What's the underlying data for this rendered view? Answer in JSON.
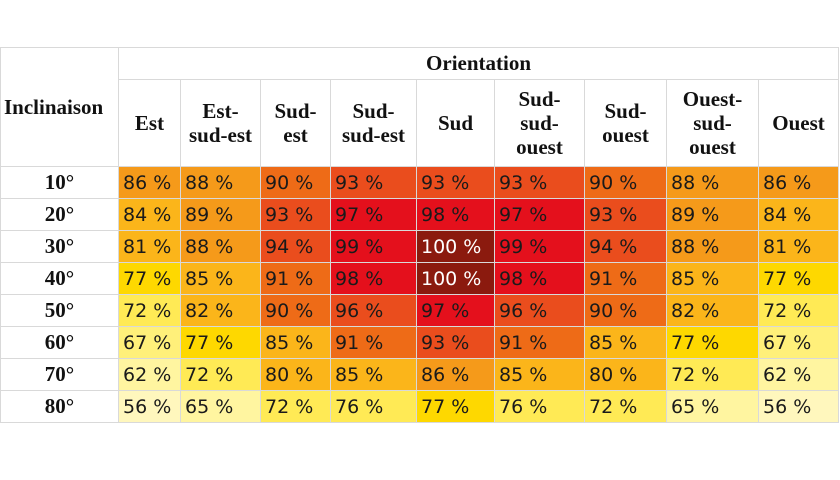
{
  "chart_data": {
    "type": "heatmap",
    "row_header": "Inclinaison",
    "column_group_header": "Orientation",
    "columns": [
      "Est",
      "Est-\nsud-est",
      "Sud-\nest",
      "Sud-\nsud-est",
      "Sud",
      "Sud-\nsud-\nouest",
      "Sud-\nouest",
      "Ouest-\nsud-\nouest",
      "Ouest"
    ],
    "rows": [
      "10°",
      "20°",
      "30°",
      "40°",
      "50°",
      "60°",
      "70°",
      "80°"
    ],
    "values": [
      [
        86,
        88,
        90,
        93,
        93,
        93,
        90,
        88,
        86
      ],
      [
        84,
        89,
        93,
        97,
        98,
        97,
        93,
        89,
        84
      ],
      [
        81,
        88,
        94,
        99,
        100,
        99,
        94,
        88,
        81
      ],
      [
        77,
        85,
        91,
        98,
        100,
        98,
        91,
        85,
        77
      ],
      [
        72,
        82,
        90,
        96,
        97,
        96,
        90,
        82,
        72
      ],
      [
        67,
        77,
        85,
        91,
        93,
        91,
        85,
        77,
        67
      ],
      [
        62,
        72,
        80,
        85,
        86,
        85,
        80,
        72,
        62
      ],
      [
        56,
        65,
        72,
        76,
        77,
        76,
        72,
        65,
        56
      ]
    ],
    "value_suffix": " %",
    "color_scale": [
      {
        "min": 100,
        "color": "#8b1a0e"
      },
      {
        "min": 97,
        "color": "#e4101c"
      },
      {
        "min": 93,
        "color": "#ea4d1d"
      },
      {
        "min": 90,
        "color": "#ee6b17"
      },
      {
        "min": 86,
        "color": "#f59a1a"
      },
      {
        "min": 80,
        "color": "#fbb51a"
      },
      {
        "min": 77,
        "color": "#fed800"
      },
      {
        "min": 72,
        "color": "#ffea55"
      },
      {
        "min": 67,
        "color": "#fff07a"
      },
      {
        "min": 62,
        "color": "#fff5a0"
      },
      {
        "min": 0,
        "color": "#fff7bd"
      }
    ]
  }
}
